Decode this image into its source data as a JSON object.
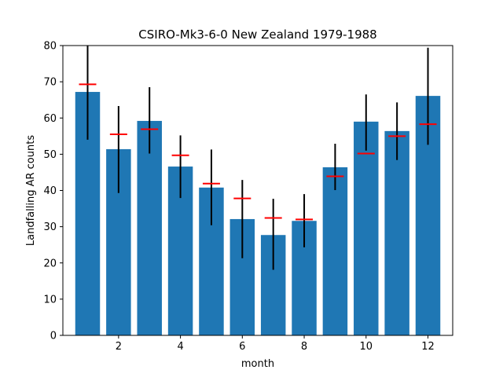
{
  "chart_data": {
    "type": "bar",
    "title": "CSIRO-Mk3-6-0 New Zealand 1979-1988",
    "xlabel": "month",
    "ylabel": "Landfalling AR counts",
    "xlim": [
      0.2,
      12.8
    ],
    "ylim": [
      0,
      80
    ],
    "x_ticks": [
      2,
      4,
      6,
      8,
      10,
      12
    ],
    "y_ticks": [
      0,
      10,
      20,
      30,
      40,
      50,
      60,
      70,
      80
    ],
    "grid": false,
    "x": [
      1,
      2,
      3,
      4,
      5,
      6,
      7,
      8,
      9,
      10,
      11,
      12
    ],
    "values": [
      67.2,
      51.4,
      59.2,
      46.6,
      40.8,
      32.1,
      27.7,
      31.6,
      46.4,
      59.0,
      56.4,
      66.1
    ],
    "error_low": [
      54.0,
      39.3,
      50.2,
      37.9,
      30.4,
      21.3,
      18.1,
      24.3,
      40.1,
      51.0,
      48.4,
      52.6
    ],
    "error_high": [
      80.0,
      63.3,
      68.5,
      55.2,
      51.3,
      42.9,
      37.7,
      39.0,
      52.9,
      66.5,
      64.3,
      79.4
    ],
    "reference": [
      69.3,
      55.5,
      56.9,
      49.7,
      41.9,
      37.8,
      32.4,
      32.0,
      43.9,
      50.2,
      55.0,
      58.3
    ],
    "colors": {
      "bar": "#1f77b4",
      "error": "#000000",
      "reference": "#ff0000"
    }
  }
}
